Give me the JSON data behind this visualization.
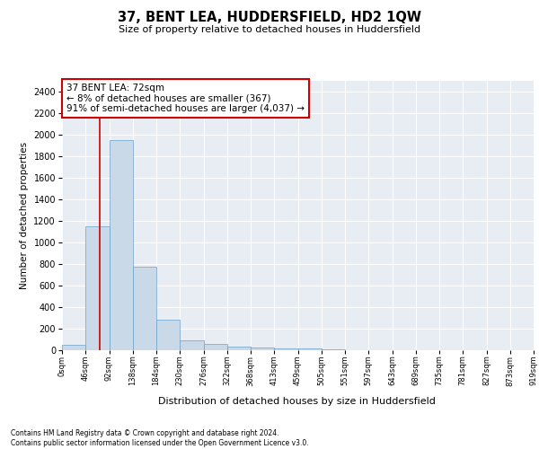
{
  "title": "37, BENT LEA, HUDDERSFIELD, HD2 1QW",
  "subtitle": "Size of property relative to detached houses in Huddersfield",
  "xlabel": "Distribution of detached houses by size in Huddersfield",
  "ylabel": "Number of detached properties",
  "bar_color": "#c9d9e8",
  "bar_edge_color": "#6ca0c8",
  "background_color": "#e8edf4",
  "annotation_box_color": "#ffffff",
  "annotation_border_color": "#cc0000",
  "vline_color": "#cc0000",
  "vline_x": 1.6,
  "bin_labels": [
    "0sqm",
    "46sqm",
    "92sqm",
    "138sqm",
    "184sqm",
    "230sqm",
    "276sqm",
    "322sqm",
    "368sqm",
    "413sqm",
    "459sqm",
    "505sqm",
    "551sqm",
    "597sqm",
    "643sqm",
    "689sqm",
    "735sqm",
    "781sqm",
    "827sqm",
    "873sqm",
    "919sqm"
  ],
  "bar_heights": [
    50,
    1150,
    1950,
    775,
    285,
    90,
    55,
    35,
    25,
    15,
    15,
    5,
    0,
    0,
    0,
    0,
    0,
    0,
    0,
    0
  ],
  "ylim": [
    0,
    2500
  ],
  "yticks": [
    0,
    200,
    400,
    600,
    800,
    1000,
    1200,
    1400,
    1600,
    1800,
    2000,
    2200,
    2400
  ],
  "annotation_text": "37 BENT LEA: 72sqm\n← 8% of detached houses are smaller (367)\n91% of semi-detached houses are larger (4,037) →",
  "footer_line1": "Contains HM Land Registry data © Crown copyright and database right 2024.",
  "footer_line2": "Contains public sector information licensed under the Open Government Licence v3.0."
}
